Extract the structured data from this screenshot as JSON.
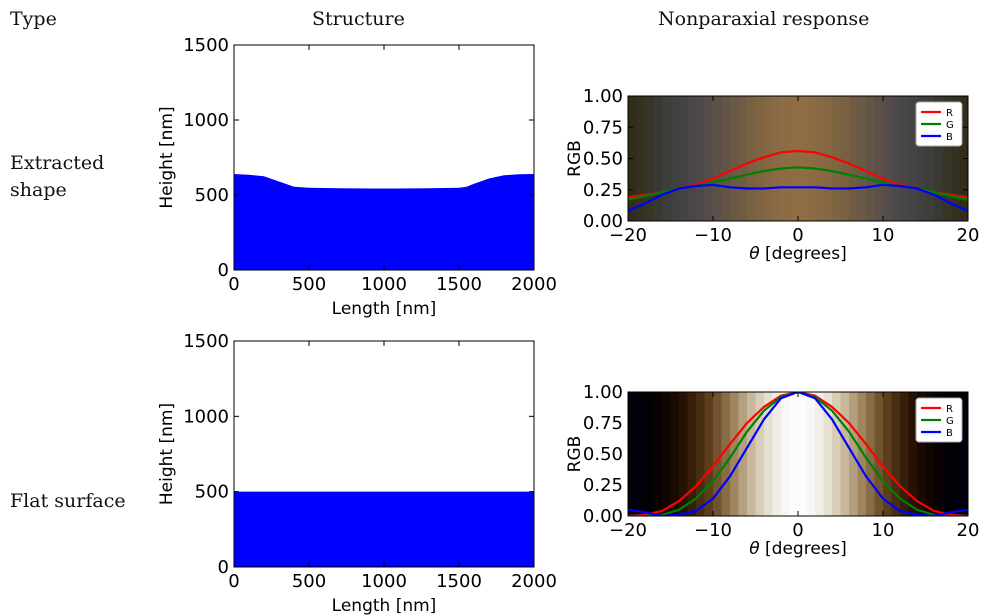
{
  "headers": {
    "type": "Type",
    "structure": "Structure",
    "response": "Nonparaxial response"
  },
  "rows": [
    {
      "label_line1": "Extracted",
      "label_line2": "shape"
    },
    {
      "label_line1": "Flat surface",
      "label_line2": ""
    }
  ],
  "chart_data": [
    {
      "type": "area",
      "name": "structure-extracted",
      "xlabel": "Length [nm]",
      "ylabel": "Height [nm]",
      "xlim": [
        0,
        2000
      ],
      "ylim": [
        0,
        1500
      ],
      "xticks": [
        0,
        500,
        1000,
        1500,
        2000
      ],
      "yticks": [
        0,
        500,
        1000,
        1500
      ],
      "fill_color": "#0000ff",
      "x": [
        0,
        100,
        200,
        300,
        400,
        500,
        700,
        900,
        1000,
        1100,
        1300,
        1500,
        1550,
        1600,
        1700,
        1800,
        1900,
        2000
      ],
      "y": [
        640,
        635,
        625,
        590,
        555,
        548,
        545,
        543,
        543,
        543,
        545,
        548,
        555,
        575,
        610,
        632,
        638,
        640
      ]
    },
    {
      "type": "line",
      "name": "response-extracted",
      "xlabel": "θ [degrees]",
      "ylabel": "RGB",
      "xlim": [
        -20,
        20
      ],
      "ylim": [
        0,
        1
      ],
      "xticks": [
        -20,
        -10,
        0,
        10,
        20
      ],
      "yticks": [
        0.0,
        0.25,
        0.5,
        0.75,
        1.0
      ],
      "legend": "top-right",
      "x": [
        -21,
        -20,
        -18,
        -16,
        -14,
        -12,
        -10,
        -8,
        -6,
        -4,
        -2,
        0,
        2,
        4,
        6,
        8,
        10,
        12,
        14,
        16,
        18,
        20,
        21
      ],
      "series": [
        {
          "name": "R",
          "color": "#ff0000",
          "values": [
            0.19,
            0.19,
            0.21,
            0.23,
            0.26,
            0.29,
            0.34,
            0.4,
            0.46,
            0.51,
            0.55,
            0.56,
            0.55,
            0.51,
            0.46,
            0.4,
            0.34,
            0.29,
            0.26,
            0.23,
            0.21,
            0.19,
            0.19
          ]
        },
        {
          "name": "G",
          "color": "#008000",
          "values": [
            0.16,
            0.17,
            0.2,
            0.23,
            0.26,
            0.28,
            0.31,
            0.34,
            0.37,
            0.4,
            0.42,
            0.43,
            0.42,
            0.4,
            0.37,
            0.34,
            0.31,
            0.28,
            0.26,
            0.23,
            0.2,
            0.17,
            0.16
          ]
        },
        {
          "name": "B",
          "color": "#0000ff",
          "values": [
            0.06,
            0.08,
            0.14,
            0.21,
            0.26,
            0.28,
            0.29,
            0.27,
            0.26,
            0.26,
            0.27,
            0.27,
            0.27,
            0.26,
            0.26,
            0.27,
            0.29,
            0.28,
            0.26,
            0.21,
            0.14,
            0.08,
            0.06
          ]
        }
      ]
    },
    {
      "type": "area",
      "name": "structure-flat",
      "xlabel": "Length [nm]",
      "ylabel": "Height [nm]",
      "xlim": [
        0,
        2000
      ],
      "ylim": [
        0,
        1500
      ],
      "xticks": [
        0,
        500,
        1000,
        1500,
        2000
      ],
      "yticks": [
        0,
        500,
        1000,
        1500
      ],
      "fill_color": "#0000ff",
      "x": [
        0,
        2000
      ],
      "y": [
        500,
        500
      ]
    },
    {
      "type": "line",
      "name": "response-flat",
      "xlabel": "θ [degrees]",
      "ylabel": "RGB",
      "xlim": [
        -20,
        20
      ],
      "ylim": [
        0,
        1
      ],
      "xticks": [
        -20,
        -10,
        0,
        10,
        20
      ],
      "yticks": [
        0.0,
        0.25,
        0.5,
        0.75,
        1.0
      ],
      "legend": "top-right",
      "x": [
        -21,
        -20,
        -18,
        -16,
        -14,
        -12,
        -10,
        -8,
        -6,
        -4,
        -2,
        0,
        2,
        4,
        6,
        8,
        10,
        12,
        14,
        16,
        18,
        20,
        21
      ],
      "series": [
        {
          "name": "R",
          "color": "#ff0000",
          "values": [
            0.0,
            0.0,
            0.01,
            0.04,
            0.12,
            0.24,
            0.4,
            0.58,
            0.75,
            0.88,
            0.97,
            1.0,
            0.97,
            0.88,
            0.75,
            0.58,
            0.4,
            0.24,
            0.12,
            0.04,
            0.01,
            0.0,
            0.0
          ]
        },
        {
          "name": "G",
          "color": "#008000",
          "values": [
            0.0,
            0.0,
            0.0,
            0.01,
            0.05,
            0.14,
            0.28,
            0.47,
            0.68,
            0.85,
            0.96,
            1.0,
            0.96,
            0.85,
            0.68,
            0.47,
            0.28,
            0.14,
            0.05,
            0.01,
            0.0,
            0.0,
            0.0
          ]
        },
        {
          "name": "B",
          "color": "#0000ff",
          "values": [
            0.04,
            0.05,
            0.03,
            0.0,
            0.01,
            0.04,
            0.14,
            0.32,
            0.55,
            0.78,
            0.95,
            1.0,
            0.95,
            0.78,
            0.55,
            0.32,
            0.14,
            0.04,
            0.01,
            0.0,
            0.03,
            0.05,
            0.04
          ]
        }
      ]
    }
  ]
}
